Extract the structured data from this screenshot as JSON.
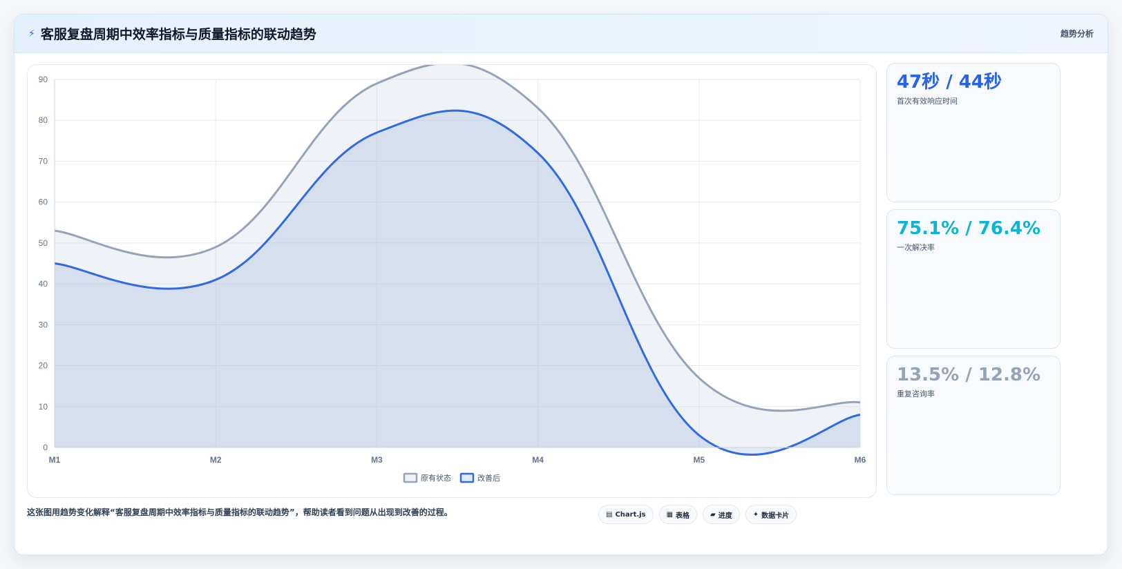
{
  "header": {
    "icon": "lightning-icon",
    "title": "客服复盘周期中效率指标与质量指标的联动趋势",
    "tag": "趋势分析"
  },
  "metrics": [
    {
      "value": "47秒 / 44秒",
      "label": "首次有效响应时间",
      "color": "#2563eb"
    },
    {
      "value": "75.1% / 76.4%",
      "label": "一次解决率",
      "color": "#06b6d4"
    },
    {
      "value": "13.5% / 12.8%",
      "label": "重复咨询率",
      "color": "#94a3b8"
    }
  ],
  "footer": {
    "caption": "这张图用趋势变化解释“客服复盘周期中效率指标与质量指标的联动趋势”，帮助读者看到问题从出现到改善的过程。",
    "chips": [
      {
        "icon": "chart-icon",
        "glyph": "▤",
        "label": "Chart.js"
      },
      {
        "icon": "table-icon",
        "glyph": "▦",
        "label": "表格"
      },
      {
        "icon": "progress-icon",
        "glyph": "▰",
        "label": "进度"
      },
      {
        "icon": "card-icon",
        "glyph": "✦",
        "label": "数据卡片"
      }
    ]
  },
  "chart_data": {
    "type": "area",
    "categories": [
      "M1",
      "M2",
      "M3",
      "M4",
      "M5",
      "M6"
    ],
    "ylim": [
      0,
      90
    ],
    "yticks": [
      0,
      10,
      20,
      30,
      40,
      50,
      60,
      70,
      80,
      90
    ],
    "grid": true,
    "legend_position": "bottom",
    "series": [
      {
        "name": "原有状态",
        "values": [
          53,
          49,
          89,
          83,
          17,
          11
        ],
        "color": "#94a3b8",
        "fill": "rgba(203,213,225,0.30)"
      },
      {
        "name": "改善后",
        "values": [
          45,
          41,
          77,
          72,
          3,
          8
        ],
        "color": "#2f6ae0",
        "fill": "rgba(147,176,220,0.28)"
      }
    ]
  }
}
